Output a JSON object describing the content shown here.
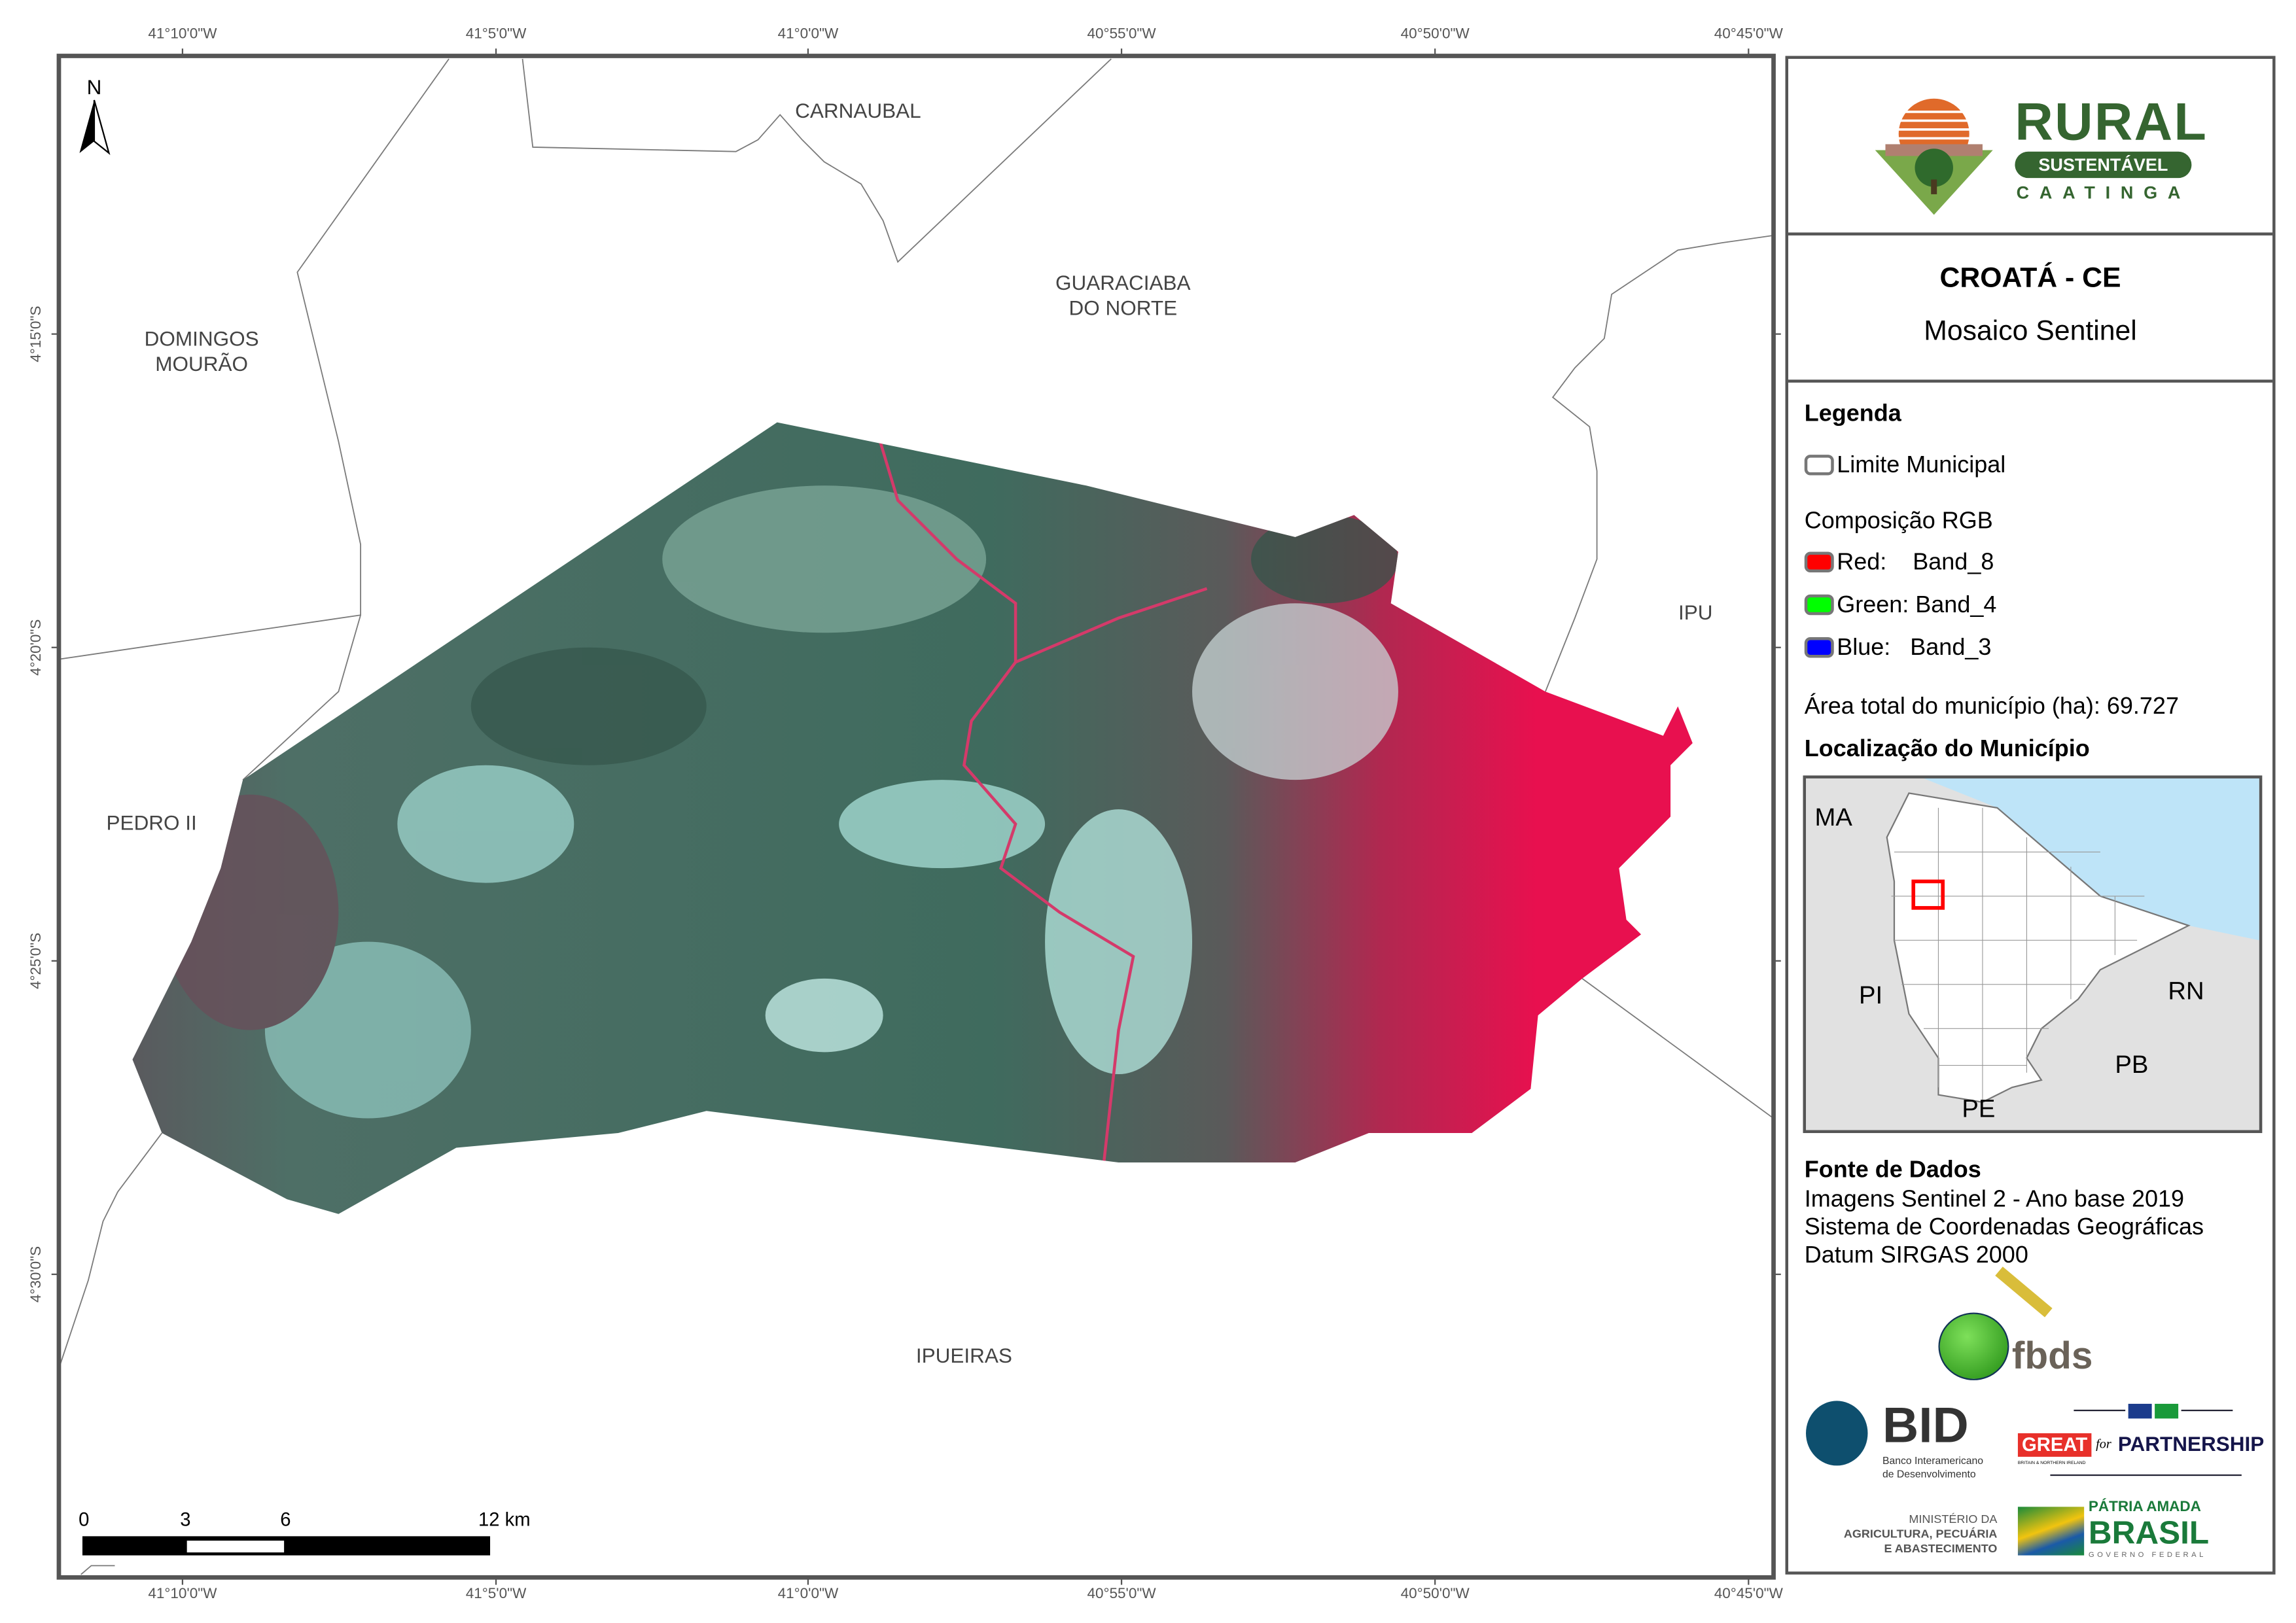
{
  "map": {
    "graticule_top": [
      "41°10'0\"W",
      "41°5'0\"W",
      "41°0'0\"W",
      "40°55'0\"W",
      "40°50'0\"W",
      "40°45'0\"W"
    ],
    "graticule_bottom": [
      "41°10'0\"W",
      "41°5'0\"W",
      "41°0'0\"W",
      "40°55'0\"W",
      "40°50'0\"W",
      "40°45'0\"W"
    ],
    "graticule_left": [
      "4°15'0\"S",
      "4°20'0\"S",
      "4°25'0\"S",
      "4°30'0\"S"
    ],
    "north_label": "N",
    "places": {
      "carnaubal": "CARNAUBAL",
      "guaraciaba_1": "GUARACIABA",
      "guaraciaba_2": "DO NORTE",
      "domingos_1": "DOMINGOS",
      "domingos_2": "MOURÃO",
      "ipu": "IPU",
      "pedro": "PEDRO II",
      "ipueiras": "IPUEIRAS"
    },
    "scalebar": {
      "labels": [
        "0",
        "3",
        "6",
        "12 km"
      ]
    },
    "colors": {
      "vegetation": "#3f6b5e",
      "cropland": "#e8104f",
      "bright_soil": "#bfeee8",
      "boundary": "#7a7a7a"
    }
  },
  "panel": {
    "logo": {
      "word1": "RURAL",
      "word2": "SUSTENTÁVEL",
      "word3": "CAATINGA",
      "color": "#356530",
      "sun_color": "#e06a2a"
    },
    "title": "CROATÁ - CE",
    "subtitle": "Mosaico Sentinel",
    "legend": {
      "heading": "Legenda",
      "limit_label": "Limite Municipal",
      "rgb_heading": "Composição RGB",
      "bands": [
        {
          "label": "Red:    Band_8",
          "color": "#ff0000"
        },
        {
          "label": "Green: Band_4",
          "color": "#00ff00"
        },
        {
          "label": "Blue:   Band_3",
          "color": "#0000ff"
        }
      ],
      "area": "Área total do município (ha): 69.727"
    },
    "location": {
      "heading": "Localização do Município",
      "states": {
        "ma": "MA",
        "pi": "PI",
        "rn": "RN",
        "pb": "PB",
        "pe": "PE"
      },
      "colors": {
        "ocean": "#bee4f8",
        "neighbor": "#e1e1e1",
        "state": "#ffffff",
        "highlight": "#ff0000"
      }
    },
    "sources": {
      "heading": "Fonte de Dados",
      "lines": [
        "Imagens Sentinel 2 - Ano base 2019",
        "Sistema de Coordenadas Geográficas",
        "Datum SIRGAS 2000"
      ]
    },
    "logos": {
      "fbds": "fbds",
      "bid": "BID",
      "bid_sub1": "Banco Interamericano",
      "bid_sub2": "de Desenvolvimento",
      "great": "GREAT",
      "great_sub": "BRITAIN & NORTHERN IRELAND",
      "for": "for",
      "partnership": "PARTNERSHIP",
      "min1": "MINISTÉRIO DA",
      "min2": "AGRICULTURA, PECUÁRIA",
      "min3": "E ABASTECIMENTO",
      "patria": "PÁTRIA AMADA",
      "brasil": "BRASIL",
      "gov": "GOVERNO FEDERAL"
    }
  }
}
